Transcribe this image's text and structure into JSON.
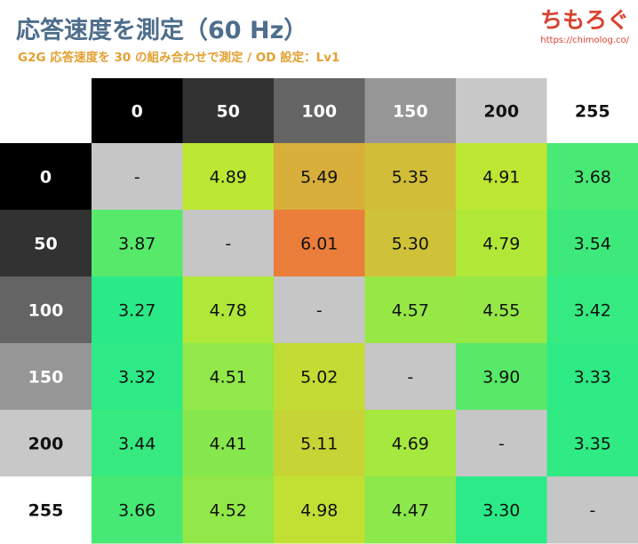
{
  "title": "応答速度を測定（60 Hz）",
  "subtitle": "G2G 応答速度を 30 の組み合わせで測定 / OD 設定：Lv1",
  "brand": {
    "name": "ちもろぐ",
    "url": "https://chimolog.co/"
  },
  "chart_data": {
    "type": "heatmap",
    "columns": [
      "0",
      "50",
      "100",
      "150",
      "200",
      "255"
    ],
    "rows": [
      "0",
      "50",
      "100",
      "150",
      "200",
      "255"
    ],
    "values": [
      [
        null,
        4.89,
        5.49,
        5.35,
        4.91,
        3.68
      ],
      [
        3.87,
        null,
        6.01,
        5.3,
        4.79,
        3.54
      ],
      [
        3.27,
        4.78,
        null,
        4.57,
        4.55,
        3.42
      ],
      [
        3.32,
        4.51,
        5.02,
        null,
        3.9,
        3.33
      ],
      [
        3.44,
        4.41,
        5.11,
        4.69,
        null,
        3.35
      ],
      [
        3.66,
        4.52,
        4.98,
        4.47,
        3.3,
        null
      ]
    ],
    "cell_labels": [
      [
        "-",
        "4.89",
        "5.49",
        "5.35",
        "4.91",
        "3.68"
      ],
      [
        "3.87",
        "-",
        "6.01",
        "5.30",
        "4.79",
        "3.54"
      ],
      [
        "3.27",
        "4.78",
        "-",
        "4.57",
        "4.55",
        "3.42"
      ],
      [
        "3.32",
        "4.51",
        "5.02",
        "-",
        "3.90",
        "3.33"
      ],
      [
        "3.44",
        "4.41",
        "5.11",
        "4.69",
        "-",
        "3.35"
      ],
      [
        "3.66",
        "4.52",
        "4.98",
        "4.47",
        "3.30",
        "-"
      ]
    ],
    "header_colors": [
      "#000000",
      "#323232",
      "#646464",
      "#969696",
      "#c8c8c8",
      "#ffffff"
    ],
    "header_text_colors": [
      "#ffffff",
      "#ffffff",
      "#ffffff",
      "#ffffff",
      "#111111",
      "#111111"
    ],
    "diagonal_color": "#c6c6c6",
    "color_scale": [
      {
        "value": 3.27,
        "color": "#2aea88"
      },
      {
        "value": 4.2,
        "color": "#6ee85a"
      },
      {
        "value": 4.9,
        "color": "#bde832"
      },
      {
        "value": 5.4,
        "color": "#d4b83a"
      },
      {
        "value": 6.01,
        "color": "#ea7d3a"
      }
    ]
  }
}
